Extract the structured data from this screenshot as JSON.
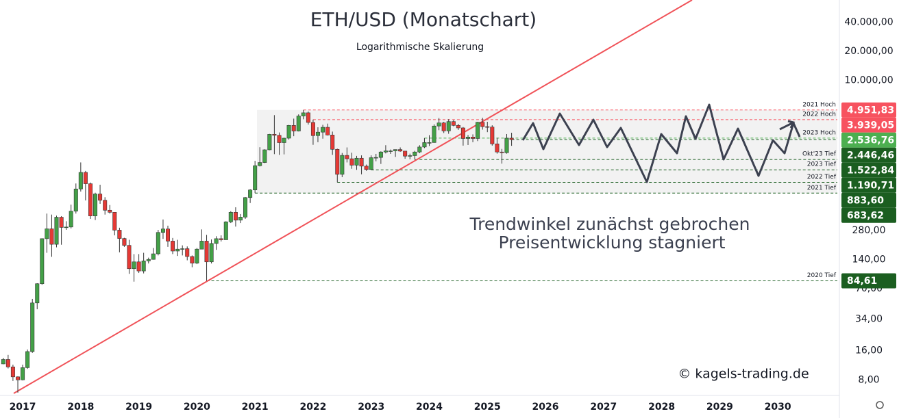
{
  "chart_data": {
    "type": "candlestick",
    "title": "ETH/USD (Monatschart)",
    "subtitle": "Logarithmische Skalierung",
    "annotations": [
      "Trendwinkel zunächst gebrochen",
      "Preisentwicklung stagniert"
    ],
    "copyright": "© kagels-trading.de",
    "log_scale": true,
    "up_color": "#43a047",
    "down_color": "#e53935",
    "xlim": [
      2016.61,
      2031.06
    ],
    "xticks": [
      2017,
      2018,
      2019,
      2020,
      2021,
      2022,
      2023,
      2024,
      2025,
      2026,
      2027,
      2028,
      2029,
      2030
    ],
    "ylim": [
      5.8,
      68000
    ],
    "yticks": [
      {
        "value": 40000,
        "label": "40.000,00"
      },
      {
        "value": 20000,
        "label": "20.000,00"
      },
      {
        "value": 10000,
        "label": "10.000,00"
      },
      {
        "value": 280,
        "label": "280,00"
      },
      {
        "value": 140,
        "label": "140,00"
      },
      {
        "value": 70,
        "label": "70,00"
      },
      {
        "value": 34,
        "label": "34,00"
      },
      {
        "value": 16,
        "label": "16,00"
      },
      {
        "value": 8,
        "label": "8,00"
      }
    ],
    "levels": [
      {
        "value": 4951.83,
        "label": "4.951,83",
        "note": "2021 Hoch",
        "color": "#f7525f"
      },
      {
        "value": 3939.05,
        "label": "3.939,05",
        "note": "2022 Hoch",
        "color": "#f7525f"
      },
      {
        "value": 2536.76,
        "label": "2.536,76",
        "note": "2023 Hoch",
        "color": "#4caf50"
      },
      {
        "value": 2446.46,
        "label": "2.446,46",
        "color": "#1b5e20"
      },
      {
        "value": 1522.84,
        "label": "1.522,84",
        "note": "Okt'23 Tief",
        "color": "#1b5e20"
      },
      {
        "value": 1190.71,
        "label": "1.190,71",
        "note": "2023 Tief",
        "color": "#1b5e20"
      },
      {
        "value": 883.6,
        "label": "883,60",
        "note": "2022 Tief",
        "color": "#1b5e20"
      },
      {
        "value": 683.62,
        "label": "683,62",
        "note": "2021 Tief",
        "color": "#1b5e20"
      },
      {
        "value": 84.61,
        "label": "84,61",
        "note": "2020 Tief",
        "color": "#1b5e20"
      }
    ],
    "x": [
      2016.667,
      2016.75,
      2016.833,
      2016.917,
      2017,
      2017.083,
      2017.167,
      2017.25,
      2017.333,
      2017.417,
      2017.5,
      2017.583,
      2017.667,
      2017.75,
      2017.833,
      2017.917,
      2018,
      2018.083,
      2018.167,
      2018.25,
      2018.333,
      2018.417,
      2018.5,
      2018.583,
      2018.667,
      2018.75,
      2018.833,
      2018.917,
      2019,
      2019.083,
      2019.167,
      2019.25,
      2019.333,
      2019.417,
      2019.5,
      2019.583,
      2019.667,
      2019.75,
      2019.833,
      2019.917,
      2020,
      2020.083,
      2020.167,
      2020.25,
      2020.333,
      2020.417,
      2020.5,
      2020.583,
      2020.667,
      2020.75,
      2020.833,
      2020.917,
      2021,
      2021.083,
      2021.167,
      2021.25,
      2021.333,
      2021.417,
      2021.5,
      2021.583,
      2021.667,
      2021.75,
      2021.833,
      2021.917,
      2022,
      2022.083,
      2022.167,
      2022.25,
      2022.333,
      2022.417,
      2022.5,
      2022.583,
      2022.667,
      2022.75,
      2022.833,
      2022.917,
      2023,
      2023.083,
      2023.167,
      2023.25,
      2023.333,
      2023.417,
      2023.5,
      2023.583,
      2023.667,
      2023.75,
      2023.833,
      2023.917,
      2024,
      2024.083,
      2024.167,
      2024.25,
      2024.333,
      2024.417,
      2024.5,
      2024.583,
      2024.667,
      2024.75,
      2024.833,
      2024.917,
      2025,
      2025.083,
      2025.167,
      2025.25,
      2025.333,
      2025.417
    ],
    "open": [
      11.7,
      13.0,
      10.9,
      8.6,
      8.0,
      10.7,
      15.7,
      50,
      79,
      231,
      292,
      202,
      385,
      302,
      305,
      445,
      755,
      1120,
      855,
      397,
      670,
      577,
      455,
      433,
      283,
      232,
      197,
      113,
      133,
      107,
      136,
      141,
      161,
      268,
      291,
      218,
      172,
      180,
      182,
      151,
      129,
      180,
      218,
      133,
      206,
      231,
      225,
      345,
      433,
      359,
      386,
      615,
      737,
      1314,
      1417,
      1918,
      2774,
      2710,
      2275,
      2530,
      3430,
      3000,
      4290,
      4630,
      3680,
      2690,
      2920,
      3280,
      2730,
      1940,
      1070,
      1680,
      1550,
      1330,
      1570,
      1300,
      1200,
      1590,
      1600,
      1820,
      1870,
      1870,
      1930,
      1860,
      1650,
      1670,
      1820,
      2050,
      2280,
      2280,
      3380,
      3640,
      3010,
      3760,
      3430,
      3230,
      2510,
      2600,
      2510,
      3700,
      3330,
      3300,
      2210,
      1820,
      1790,
      2530
    ],
    "high": [
      13.5,
      14.5,
      11.5,
      8.7,
      11.5,
      16.5,
      55,
      80,
      233,
      420,
      410,
      400,
      395,
      350,
      520,
      860,
      1420,
      1160,
      880,
      690,
      835,
      620,
      515,
      435,
      300,
      236,
      225,
      160,
      160,
      165,
      147,
      185,
      285,
      365,
      315,
      235,
      225,
      197,
      192,
      155,
      185,
      288,
      253,
      227,
      245,
      250,
      350,
      445,
      488,
      415,
      622,
      752,
      1475,
      2040,
      1940,
      2800,
      4380,
      2900,
      2560,
      3470,
      4030,
      4460,
      4951.83,
      4780,
      3939.05,
      3280,
      3480,
      3580,
      2960,
      1970,
      1780,
      2030,
      1790,
      1660,
      1680,
      1350,
      1680,
      1740,
      1850,
      2140,
      1930,
      1930,
      2030,
      1870,
      1750,
      1870,
      2140,
      2536.76,
      2720,
      3520,
      4090,
      3730,
      3980,
      3890,
      3560,
      3300,
      2730,
      2770,
      3740,
      4110,
      3740,
      3440,
      2550,
      1960,
      2790,
      2880
    ],
    "low": [
      11.6,
      10.5,
      7.8,
      5.9,
      7.9,
      10.4,
      15.2,
      43,
      77,
      165,
      150,
      188,
      200,
      285,
      295,
      420,
      710,
      575,
      370,
      360,
      530,
      410,
      420,
      250,
      167,
      190,
      100,
      83,
      102,
      101,
      128,
      140,
      155,
      230,
      190,
      160,
      153,
      155,
      138,
      117,
      126,
      180,
      84.61,
      128,
      177,
      216,
      225,
      335,
      308,
      335,
      370,
      540,
      683.62,
      1290,
      1400,
      1900,
      1730,
      1700,
      1720,
      2450,
      2650,
      2970,
      3970,
      3500,
      2160,
      2300,
      2500,
      2700,
      1700,
      883.6,
      1000,
      1420,
      1220,
      1190,
      1070,
      1160,
      1190.71,
      1460,
      1370,
      1760,
      1740,
      1620,
      1830,
      1550,
      1530,
      1522.84,
      1770,
      2000,
      2100,
      2270,
      3060,
      2860,
      2810,
      3360,
      3080,
      2120,
      2150,
      2300,
      2360,
      3100,
      2920,
      2120,
      1750,
      1380,
      1750,
      2110
    ],
    "close": [
      13.0,
      10.9,
      8.6,
      8.0,
      10.7,
      15.7,
      50,
      79,
      231,
      292,
      202,
      385,
      302,
      305,
      445,
      755,
      1120,
      855,
      397,
      670,
      577,
      455,
      433,
      283,
      232,
      197,
      113,
      133,
      107,
      136,
      141,
      161,
      268,
      291,
      218,
      172,
      180,
      182,
      151,
      129,
      180,
      218,
      133,
      206,
      231,
      225,
      345,
      433,
      359,
      386,
      615,
      737,
      1314,
      1417,
      1918,
      2774,
      2710,
      2275,
      2530,
      3430,
      3000,
      4290,
      4630,
      3680,
      2690,
      2920,
      3280,
      2730,
      1940,
      1070,
      1680,
      1550,
      1330,
      1570,
      1300,
      1200,
      1590,
      1600,
      1820,
      1870,
      1870,
      1930,
      1860,
      1650,
      1670,
      1820,
      2050,
      2280,
      2280,
      3380,
      3640,
      3010,
      3760,
      3430,
      3230,
      2510,
      2600,
      2510,
      3700,
      3330,
      3300,
      2210,
      1820,
      1790,
      2530,
      2446.46
    ]
  }
}
